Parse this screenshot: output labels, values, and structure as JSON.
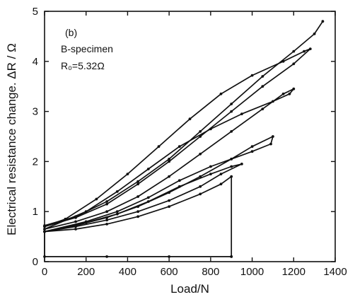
{
  "chart_data": {
    "type": "line",
    "title": "",
    "xlabel": "Load/N",
    "ylabel": "Electrical resistance change. ΔR / Ω",
    "xlim": [
      0,
      1400
    ],
    "ylim": [
      0,
      5
    ],
    "x_ticks": [
      0,
      200,
      400,
      600,
      800,
      1000,
      1200,
      1400
    ],
    "y_ticks": [
      0,
      1,
      2,
      3,
      4,
      5
    ],
    "x_tick_labels": [
      "0",
      "200",
      "400",
      "600",
      "800",
      "1000",
      "1200",
      "1400"
    ],
    "y_tick_labels": [
      "0",
      "1",
      "2",
      "3",
      "4",
      "5"
    ],
    "grid": false,
    "legend": "none",
    "annotations": [
      "(b)",
      "B-specimen",
      "R₀=5.32Ω"
    ],
    "series": [
      {
        "points": [
          [
            900,
            0.1
          ],
          [
            600,
            0.1
          ],
          [
            300,
            0.1
          ],
          [
            0,
            0.1
          ],
          [
            0,
            0.6
          ],
          [
            150,
            0.65
          ],
          [
            300,
            0.75
          ],
          [
            450,
            0.9
          ],
          [
            600,
            1.1
          ],
          [
            750,
            1.35
          ],
          [
            850,
            1.55
          ],
          [
            900,
            1.7
          ],
          [
            900,
            0.1
          ]
        ]
      },
      {
        "points": [
          [
            0,
            0.6
          ],
          [
            150,
            0.7
          ],
          [
            300,
            0.83
          ],
          [
            450,
            1.0
          ],
          [
            600,
            1.22
          ],
          [
            750,
            1.5
          ],
          [
            850,
            1.75
          ],
          [
            950,
            1.95
          ],
          [
            900,
            1.9
          ],
          [
            800,
            1.75
          ],
          [
            650,
            1.5
          ],
          [
            500,
            1.2
          ],
          [
            350,
            0.95
          ],
          [
            200,
            0.78
          ],
          [
            0,
            0.6
          ]
        ]
      },
      {
        "points": [
          [
            0,
            0.6
          ],
          [
            150,
            0.72
          ],
          [
            300,
            0.88
          ],
          [
            450,
            1.1
          ],
          [
            600,
            1.38
          ],
          [
            750,
            1.7
          ],
          [
            900,
            2.05
          ],
          [
            1000,
            2.3
          ],
          [
            1100,
            2.5
          ],
          [
            1090,
            2.35
          ],
          [
            1000,
            2.2
          ],
          [
            900,
            2.05
          ],
          [
            800,
            1.9
          ],
          [
            650,
            1.62
          ],
          [
            500,
            1.28
          ],
          [
            350,
            1.0
          ],
          [
            200,
            0.8
          ],
          [
            0,
            0.6
          ]
        ]
      },
      {
        "points": [
          [
            0,
            0.65
          ],
          [
            150,
            0.8
          ],
          [
            300,
            1.0
          ],
          [
            450,
            1.3
          ],
          [
            600,
            1.7
          ],
          [
            750,
            2.15
          ],
          [
            900,
            2.6
          ],
          [
            1050,
            3.05
          ],
          [
            1150,
            3.35
          ],
          [
            1200,
            3.45
          ],
          [
            1180,
            3.35
          ],
          [
            1100,
            3.2
          ],
          [
            950,
            2.95
          ],
          [
            800,
            2.65
          ],
          [
            650,
            2.3
          ],
          [
            500,
            1.85
          ],
          [
            350,
            1.4
          ],
          [
            200,
            1.0
          ],
          [
            0,
            0.65
          ]
        ]
      },
      {
        "points": [
          [
            0,
            0.7
          ],
          [
            150,
            0.88
          ],
          [
            300,
            1.15
          ],
          [
            450,
            1.55
          ],
          [
            600,
            2.0
          ],
          [
            750,
            2.5
          ],
          [
            900,
            3.0
          ],
          [
            1050,
            3.5
          ],
          [
            1200,
            3.95
          ],
          [
            1280,
            4.25
          ],
          [
            1250,
            4.2
          ],
          [
            1150,
            4.0
          ],
          [
            1000,
            3.72
          ],
          [
            850,
            3.35
          ],
          [
            700,
            2.85
          ],
          [
            550,
            2.3
          ],
          [
            400,
            1.75
          ],
          [
            250,
            1.25
          ],
          [
            100,
            0.85
          ],
          [
            0,
            0.7
          ]
        ]
      },
      {
        "points": [
          [
            0,
            0.72
          ],
          [
            150,
            0.9
          ],
          [
            300,
            1.2
          ],
          [
            450,
            1.6
          ],
          [
            600,
            2.05
          ],
          [
            750,
            2.6
          ],
          [
            900,
            3.15
          ],
          [
            1050,
            3.7
          ],
          [
            1200,
            4.2
          ],
          [
            1300,
            4.55
          ],
          [
            1340,
            4.8
          ]
        ]
      }
    ]
  }
}
